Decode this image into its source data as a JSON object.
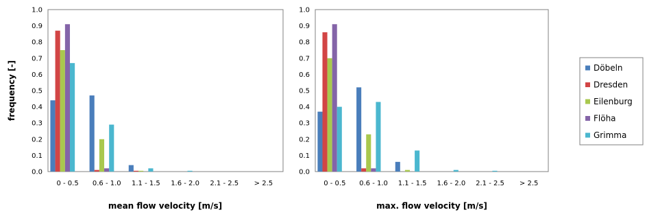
{
  "chart_data": [
    {
      "type": "bar",
      "xlabel": "mean flow velocity [m/s]",
      "ylabel": "frequency [-]",
      "ylim": [
        0,
        1.0
      ],
      "yticks": [
        "0.0",
        "0.1",
        "0.2",
        "0.3",
        "0.4",
        "0.5",
        "0.6",
        "0.7",
        "0.8",
        "0.9",
        "1.0"
      ],
      "categories": [
        "0 - 0.5",
        "0.6 - 1.0",
        "1.1 - 1.5",
        "1.6 - 2.0",
        "2.1 - 2.5",
        "> 2.5"
      ],
      "series": [
        {
          "name": "Döbeln",
          "values": [
            0.44,
            0.47,
            0.04,
            0.0,
            0.0,
            0.0
          ]
        },
        {
          "name": "Dresden",
          "values": [
            0.87,
            0.01,
            0.005,
            0.0,
            0.0,
            0.0
          ]
        },
        {
          "name": "Eilenburg",
          "values": [
            0.75,
            0.2,
            0.005,
            0.0,
            0.0,
            0.0
          ]
        },
        {
          "name": "Flöha",
          "values": [
            0.91,
            0.02,
            0.0,
            0.0,
            0.0,
            0.0
          ]
        },
        {
          "name": "Grimma",
          "values": [
            0.67,
            0.29,
            0.02,
            0.005,
            0.0,
            0.0
          ]
        }
      ],
      "grid": false
    },
    {
      "type": "bar",
      "xlabel": "max. flow velocity [m/s]",
      "ylabel": "",
      "ylim": [
        0,
        1.0
      ],
      "yticks": [
        "0.0",
        "0.1",
        "0.2",
        "0.3",
        "0.4",
        "0.5",
        "0.6",
        "0.7",
        "0.8",
        "0.9",
        "1.0"
      ],
      "categories": [
        "0 - 0.5",
        "0.6 - 1.0",
        "1.1 - 1.5",
        "1.6 - 2.0",
        "2.1 - 2.5",
        "> 2.5"
      ],
      "series": [
        {
          "name": "Döbeln",
          "values": [
            0.37,
            0.52,
            0.06,
            0.0,
            0.0,
            0.0
          ]
        },
        {
          "name": "Dresden",
          "values": [
            0.86,
            0.02,
            0.0,
            0.0,
            0.0,
            0.0
          ]
        },
        {
          "name": "Eilenburg",
          "values": [
            0.7,
            0.23,
            0.01,
            0.0,
            0.0,
            0.0
          ]
        },
        {
          "name": "Flöha",
          "values": [
            0.91,
            0.02,
            0.0,
            0.0,
            0.0,
            0.0
          ]
        },
        {
          "name": "Grimma",
          "values": [
            0.4,
            0.43,
            0.13,
            0.01,
            0.005,
            0.0
          ]
        }
      ],
      "grid": false
    }
  ],
  "legend": {
    "placement": "right",
    "items": [
      {
        "name": "Döbeln",
        "color": "#4a7ebb"
      },
      {
        "name": "Dresden",
        "color": "#d24545"
      },
      {
        "name": "Eilenburg",
        "color": "#a9c84e"
      },
      {
        "name": "Flöha",
        "color": "#8464a8"
      },
      {
        "name": "Grimma",
        "color": "#4bb7cf"
      }
    ]
  }
}
